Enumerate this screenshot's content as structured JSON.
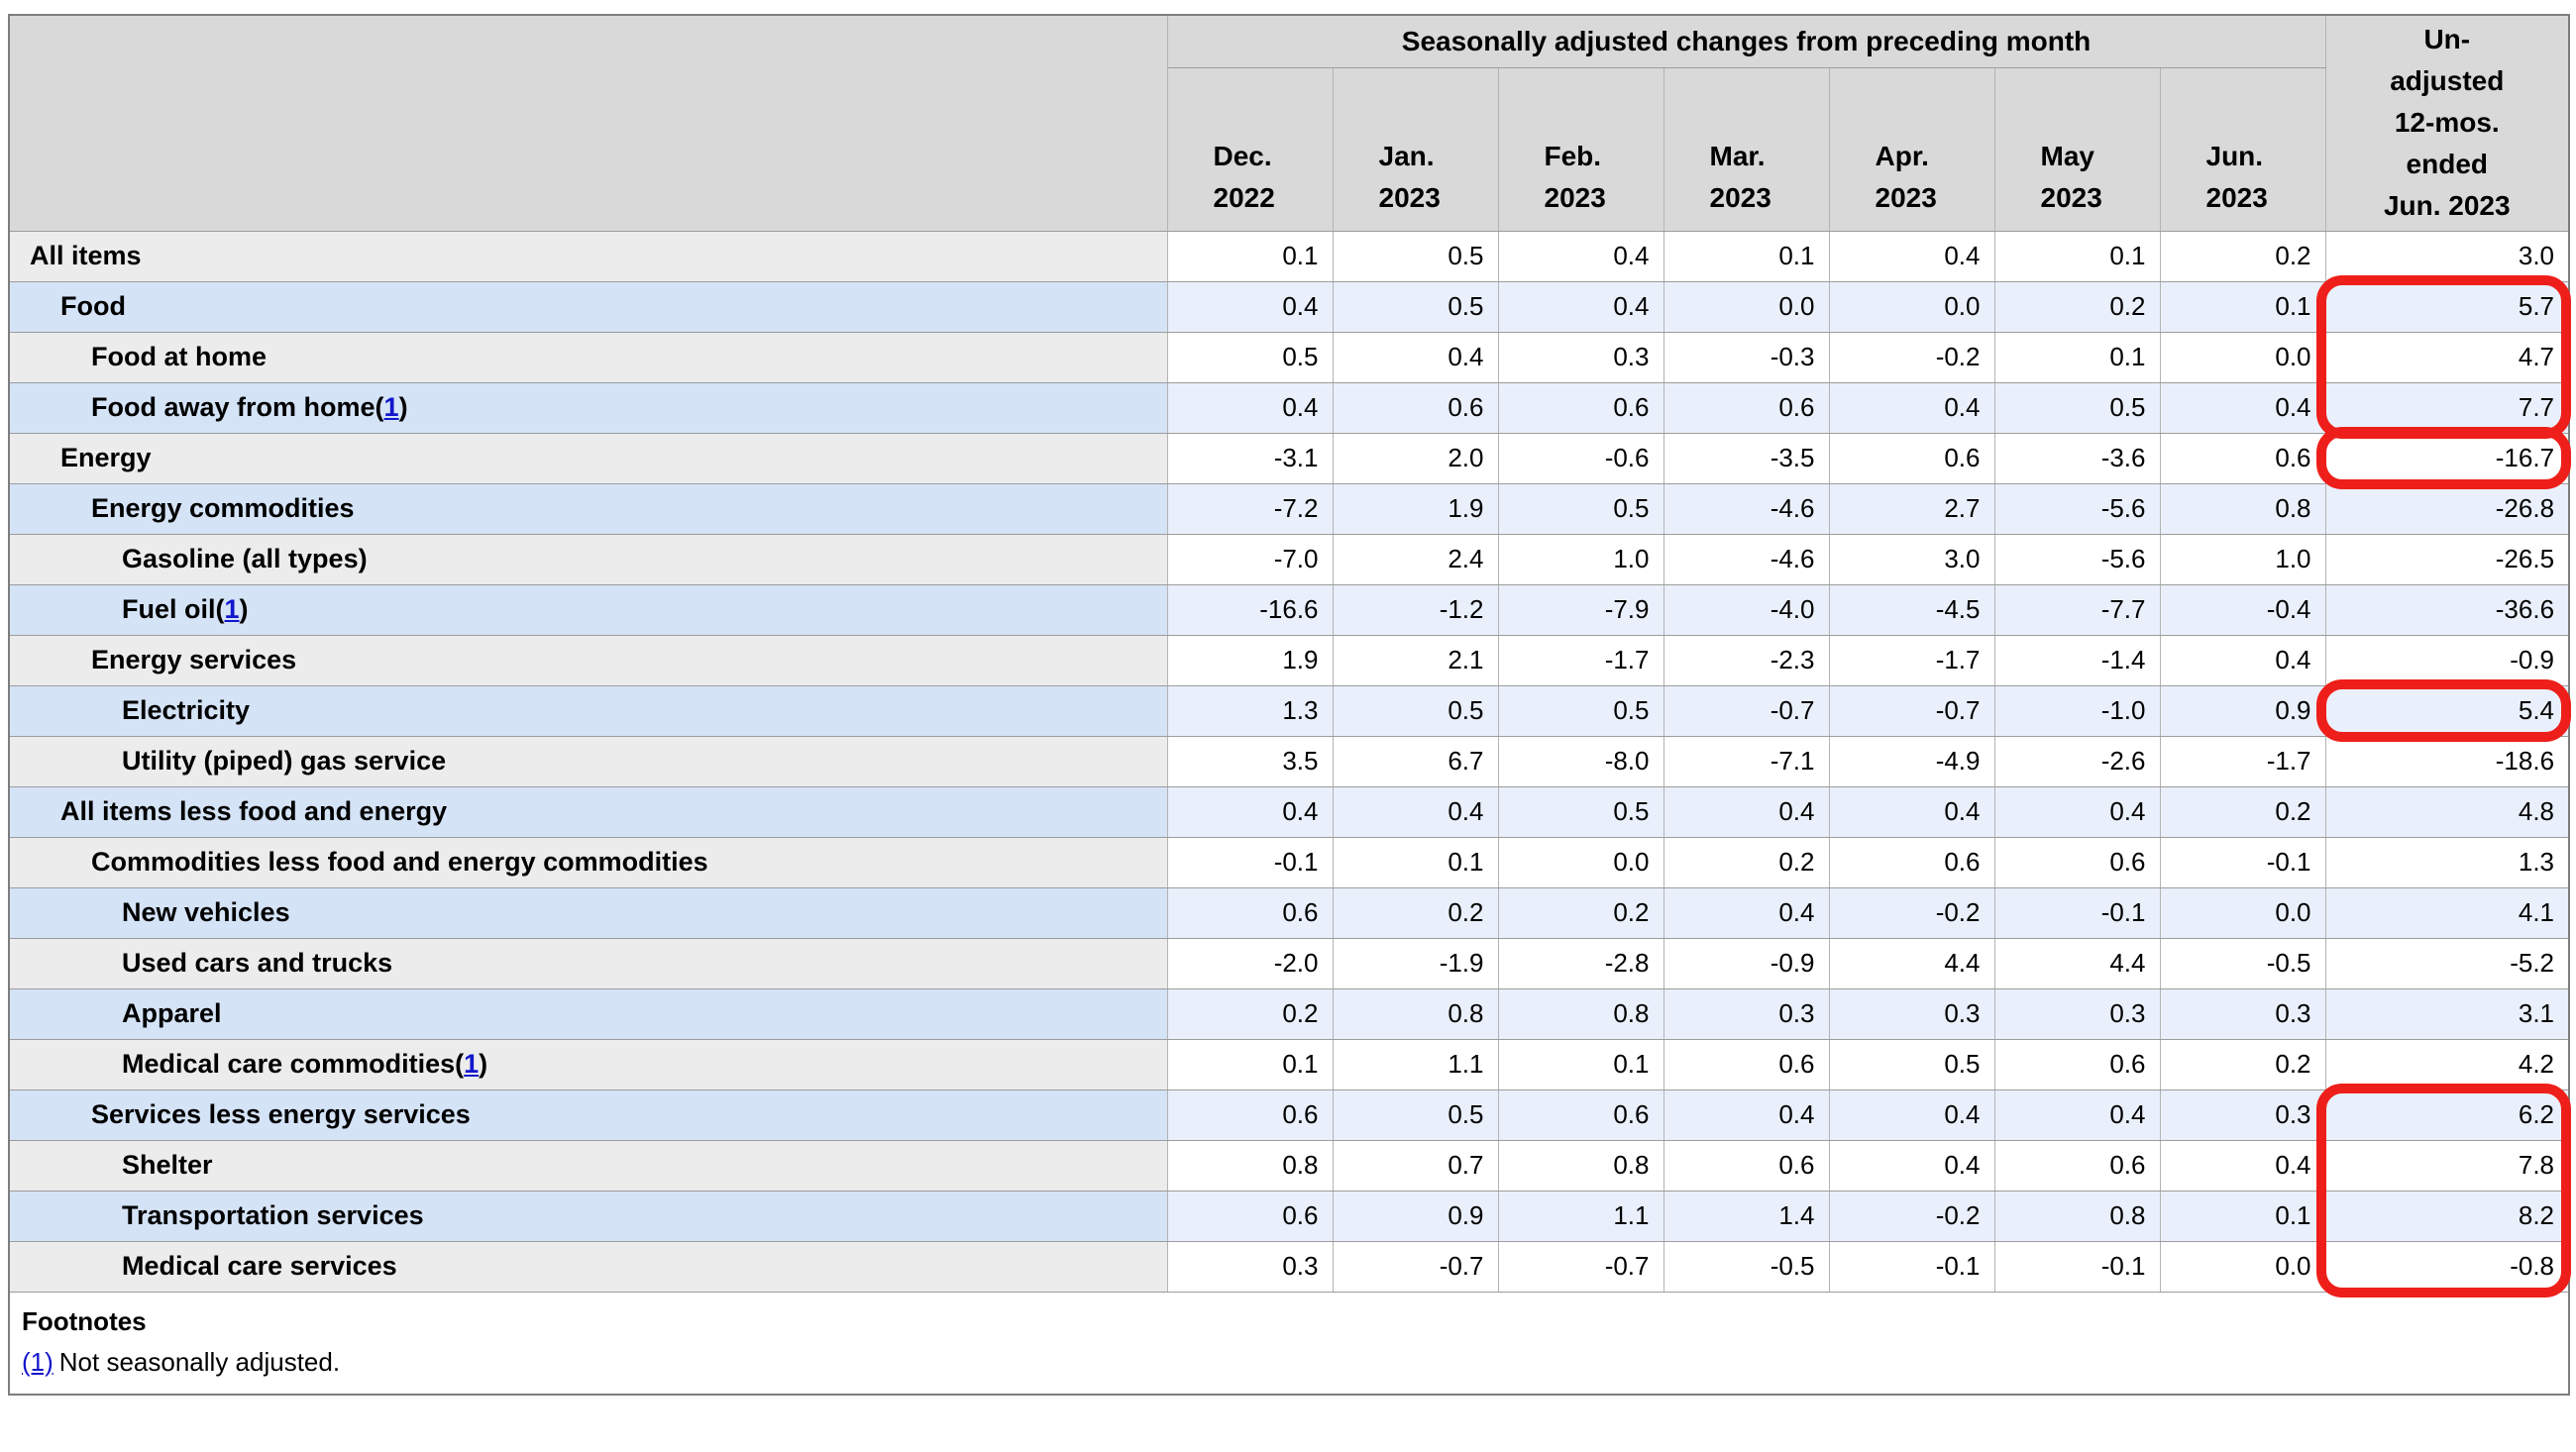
{
  "table": {
    "header": {
      "group_label": "Seasonally adjusted changes from preceding month",
      "months": [
        "Dec.\n2022",
        "Jan.\n2023",
        "Feb.\n2023",
        "Mar.\n2023",
        "Apr.\n2023",
        "May\n2023",
        "Jun.\n2023"
      ],
      "unadjusted_label": "Un-\nadjusted\n12-mos.\nended\nJun. 2023"
    },
    "rows": [
      {
        "label": "All items",
        "indent": 0,
        "footnote_ref": null,
        "values": [
          "0.1",
          "0.5",
          "0.4",
          "0.1",
          "0.4",
          "0.1",
          "0.2",
          "3.0"
        ]
      },
      {
        "label": "Food",
        "indent": 1,
        "footnote_ref": null,
        "values": [
          "0.4",
          "0.5",
          "0.4",
          "0.0",
          "0.0",
          "0.2",
          "0.1",
          "5.7"
        ]
      },
      {
        "label": "Food at home",
        "indent": 2,
        "footnote_ref": null,
        "values": [
          "0.5",
          "0.4",
          "0.3",
          "-0.3",
          "-0.2",
          "0.1",
          "0.0",
          "4.7"
        ]
      },
      {
        "label": "Food away from home",
        "indent": 2,
        "footnote_ref": "1",
        "values": [
          "0.4",
          "0.6",
          "0.6",
          "0.6",
          "0.4",
          "0.5",
          "0.4",
          "7.7"
        ]
      },
      {
        "label": "Energy",
        "indent": 1,
        "footnote_ref": null,
        "values": [
          "-3.1",
          "2.0",
          "-0.6",
          "-3.5",
          "0.6",
          "-3.6",
          "0.6",
          "-16.7"
        ]
      },
      {
        "label": "Energy commodities",
        "indent": 2,
        "footnote_ref": null,
        "values": [
          "-7.2",
          "1.9",
          "0.5",
          "-4.6",
          "2.7",
          "-5.6",
          "0.8",
          "-26.8"
        ]
      },
      {
        "label": "Gasoline (all types)",
        "indent": 3,
        "footnote_ref": null,
        "values": [
          "-7.0",
          "2.4",
          "1.0",
          "-4.6",
          "3.0",
          "-5.6",
          "1.0",
          "-26.5"
        ]
      },
      {
        "label": "Fuel oil",
        "indent": 3,
        "footnote_ref": "1",
        "values": [
          "-16.6",
          "-1.2",
          "-7.9",
          "-4.0",
          "-4.5",
          "-7.7",
          "-0.4",
          "-36.6"
        ]
      },
      {
        "label": "Energy services",
        "indent": 2,
        "footnote_ref": null,
        "values": [
          "1.9",
          "2.1",
          "-1.7",
          "-2.3",
          "-1.7",
          "-1.4",
          "0.4",
          "-0.9"
        ]
      },
      {
        "label": "Electricity",
        "indent": 3,
        "footnote_ref": null,
        "values": [
          "1.3",
          "0.5",
          "0.5",
          "-0.7",
          "-0.7",
          "-1.0",
          "0.9",
          "5.4"
        ]
      },
      {
        "label": "Utility (piped) gas service",
        "indent": 3,
        "footnote_ref": null,
        "values": [
          "3.5",
          "6.7",
          "-8.0",
          "-7.1",
          "-4.9",
          "-2.6",
          "-1.7",
          "-18.6"
        ]
      },
      {
        "label": "All items less food and energy",
        "indent": 1,
        "footnote_ref": null,
        "values": [
          "0.4",
          "0.4",
          "0.5",
          "0.4",
          "0.4",
          "0.4",
          "0.2",
          "4.8"
        ]
      },
      {
        "label": "Commodities less food and energy commodities",
        "indent": 2,
        "footnote_ref": null,
        "values": [
          "-0.1",
          "0.1",
          "0.0",
          "0.2",
          "0.6",
          "0.6",
          "-0.1",
          "1.3"
        ]
      },
      {
        "label": "New vehicles",
        "indent": 3,
        "footnote_ref": null,
        "values": [
          "0.6",
          "0.2",
          "0.2",
          "0.4",
          "-0.2",
          "-0.1",
          "0.0",
          "4.1"
        ]
      },
      {
        "label": "Used cars and trucks",
        "indent": 3,
        "footnote_ref": null,
        "values": [
          "-2.0",
          "-1.9",
          "-2.8",
          "-0.9",
          "4.4",
          "4.4",
          "-0.5",
          "-5.2"
        ]
      },
      {
        "label": "Apparel",
        "indent": 3,
        "footnote_ref": null,
        "values": [
          "0.2",
          "0.8",
          "0.8",
          "0.3",
          "0.3",
          "0.3",
          "0.3",
          "3.1"
        ]
      },
      {
        "label": "Medical care commodities",
        "indent": 3,
        "footnote_ref": "1",
        "values": [
          "0.1",
          "1.1",
          "0.1",
          "0.6",
          "0.5",
          "0.6",
          "0.2",
          "4.2"
        ]
      },
      {
        "label": "Services less energy services",
        "indent": 2,
        "footnote_ref": null,
        "values": [
          "0.6",
          "0.5",
          "0.6",
          "0.4",
          "0.4",
          "0.4",
          "0.3",
          "6.2"
        ]
      },
      {
        "label": "Shelter",
        "indent": 3,
        "footnote_ref": null,
        "values": [
          "0.8",
          "0.7",
          "0.8",
          "0.6",
          "0.4",
          "0.6",
          "0.4",
          "7.8"
        ]
      },
      {
        "label": "Transportation services",
        "indent": 3,
        "footnote_ref": null,
        "values": [
          "0.6",
          "0.9",
          "1.1",
          "1.4",
          "-0.2",
          "0.8",
          "0.1",
          "8.2"
        ]
      },
      {
        "label": "Medical care services",
        "indent": 3,
        "footnote_ref": null,
        "values": [
          "0.3",
          "-0.7",
          "-0.7",
          "-0.5",
          "-0.1",
          "-0.1",
          "0.0",
          "-0.8"
        ]
      }
    ],
    "footnotes": {
      "heading": "Footnotes",
      "items": [
        {
          "ref": "(1)",
          "text": "Not seasonally adjusted."
        }
      ]
    }
  },
  "annotations": {
    "color": "#ee1f1a",
    "column": "unadjusted",
    "boxes": [
      {
        "first_row": "Food",
        "last_row": "Food away from home",
        "row_start": 1,
        "row_end": 3,
        "values_circled": [
          "5.7",
          "4.7",
          "7.7"
        ]
      },
      {
        "first_row": "Energy",
        "last_row": "Energy",
        "row_start": 4,
        "row_end": 4,
        "values_circled": [
          "-16.7"
        ]
      },
      {
        "first_row": "Electricity",
        "last_row": "Electricity",
        "row_start": 9,
        "row_end": 9,
        "values_circled": [
          "5.4"
        ]
      },
      {
        "first_row": "Services less energy services",
        "last_row": "Medical care services",
        "row_start": 17,
        "row_end": 20,
        "values_circled": [
          "6.2",
          "7.8",
          "8.2",
          "-0.8"
        ]
      }
    ]
  },
  "style": {
    "header_bg": "#d9d9d9",
    "row_grey_label_bg": "#ececec",
    "row_blue_label_bg": "#d5e3f7",
    "row_blue_data_bg": "#eaf0fb",
    "link_color": "#1216cc",
    "annotation_color": "#ee1f1a"
  }
}
